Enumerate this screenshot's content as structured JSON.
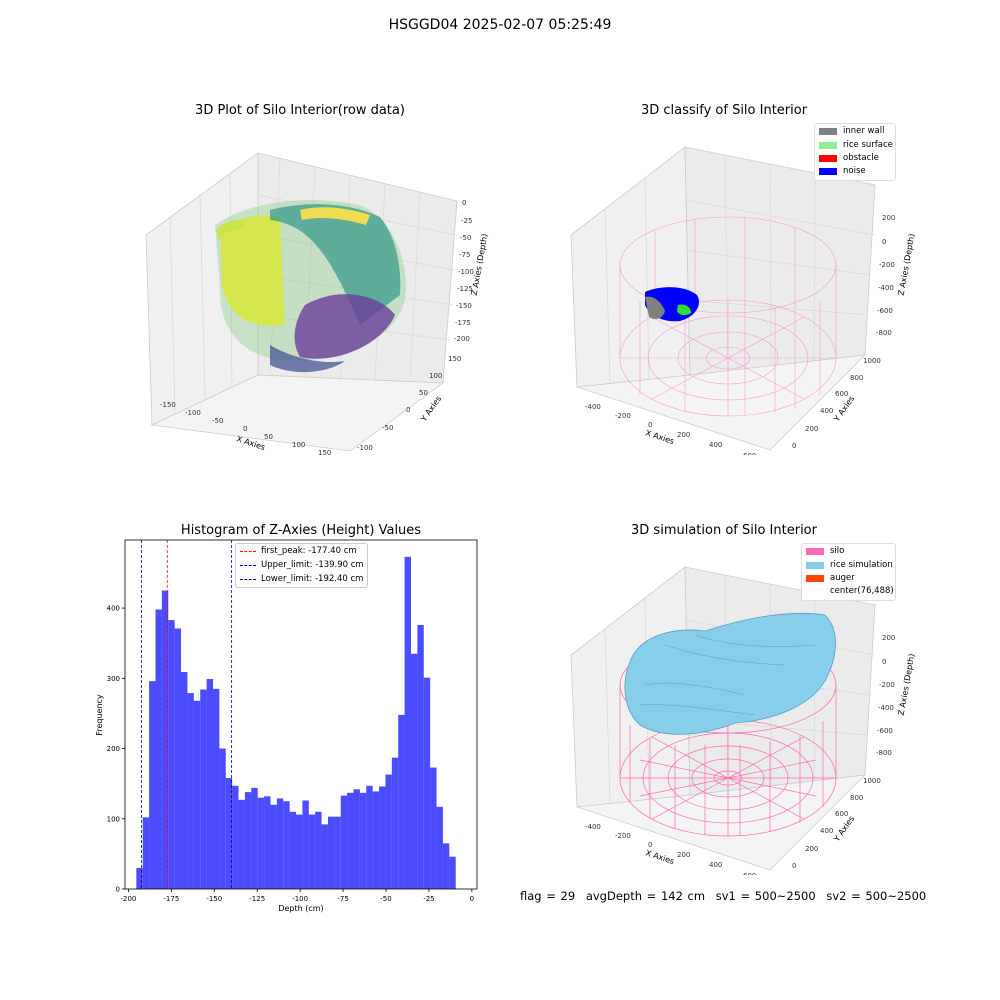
{
  "suptitle": "HSGGD04 2025-02-07 05:25:49",
  "plots": {
    "raw": {
      "title": "3D Plot of Silo Interior(row data)",
      "xlabel": "X Axies",
      "ylabel": "Y Axies",
      "zlabel": "Z Axies (Depth)",
      "xticks": [
        "-150",
        "-100",
        "-50",
        "0",
        "50",
        "100",
        "150"
      ],
      "yticks": [
        "-100",
        "-50",
        "0",
        "50",
        "100",
        "150"
      ],
      "zticks": [
        "0",
        "-25",
        "-50",
        "-75",
        "-100",
        "-125",
        "-150",
        "-175",
        "-200"
      ]
    },
    "classify": {
      "title": "3D classify of Silo Interior",
      "xlabel": "X Axies",
      "ylabel": "Y Axies",
      "zlabel": "Z Axies (Depth)",
      "xticks": [
        "-400",
        "-200",
        "0",
        "200",
        "400",
        "600"
      ],
      "yticks": [
        "0",
        "200",
        "400",
        "600",
        "800",
        "1000"
      ],
      "zticks": [
        "200",
        "0",
        "-200",
        "-400",
        "-600",
        "-800"
      ],
      "legend": [
        {
          "label": "inner wall",
          "color": "#808080"
        },
        {
          "label": "rice surface",
          "color": "#90ee90"
        },
        {
          "label": "obstacle",
          "color": "#ff0000"
        },
        {
          "label": "noise",
          "color": "#0000ff"
        }
      ]
    },
    "simulation": {
      "title": "3D simulation of Silo Interior",
      "xlabel": "X Axies",
      "ylabel": "Y Axies",
      "zlabel": "Z Axies (Depth)",
      "xticks": [
        "-400",
        "-200",
        "0",
        "200",
        "400",
        "600"
      ],
      "yticks": [
        "0",
        "200",
        "400",
        "600",
        "800",
        "1000"
      ],
      "zticks": [
        "200",
        "0",
        "-200",
        "-400",
        "-600",
        "-800"
      ],
      "legend": [
        {
          "label": "silo",
          "color": "#ff69b4"
        },
        {
          "label": "rice simulation",
          "color": "#87ceeb"
        },
        {
          "label": "auger",
          "color": "#ff4500"
        },
        {
          "label": "center(76,488)",
          "color": ""
        }
      ]
    }
  },
  "chart_data": [
    {
      "type": "bar",
      "title": "Histogram of Z-Axies (Height) Values",
      "xlabel": "Depth (cm)",
      "ylabel": "Frequency",
      "xlim": [
        -202,
        3
      ],
      "ylim": [
        0,
        497
      ],
      "xticks": [
        -200,
        -175,
        -150,
        -125,
        -100,
        -75,
        -50,
        -25,
        0
      ],
      "yticks": [
        0,
        100,
        200,
        300,
        400
      ],
      "bin_start": -195.4,
      "bin_width": 3.72,
      "bar_color": "#0000ff",
      "values": [
        30,
        102,
        296,
        398,
        425,
        383,
        371,
        309,
        279,
        268,
        284,
        299,
        285,
        200,
        158,
        147,
        127,
        138,
        144,
        130,
        132,
        120,
        129,
        125,
        110,
        106,
        126,
        106,
        110,
        92,
        103,
        103,
        133,
        137,
        142,
        137,
        147,
        139,
        146,
        163,
        187,
        248,
        473,
        335,
        376,
        301,
        173,
        117,
        65,
        46
      ],
      "vlines": [
        {
          "label": "first_peak: -177.40 cm",
          "x": -177.4,
          "color": "#ff0000"
        },
        {
          "label": "Upper_limit: -139.90 cm",
          "x": -139.9,
          "color": "#00008b"
        },
        {
          "label": "Lower_limit: -192.40 cm",
          "x": -192.4,
          "color": "#00008b"
        }
      ],
      "legend_position": "upper-center"
    }
  ],
  "status": {
    "flag": "flag = 29",
    "avg_depth": "avgDepth = 142 cm",
    "sv1": "sv1 = 500~2500",
    "sv2": "sv2 = 500~2500"
  }
}
